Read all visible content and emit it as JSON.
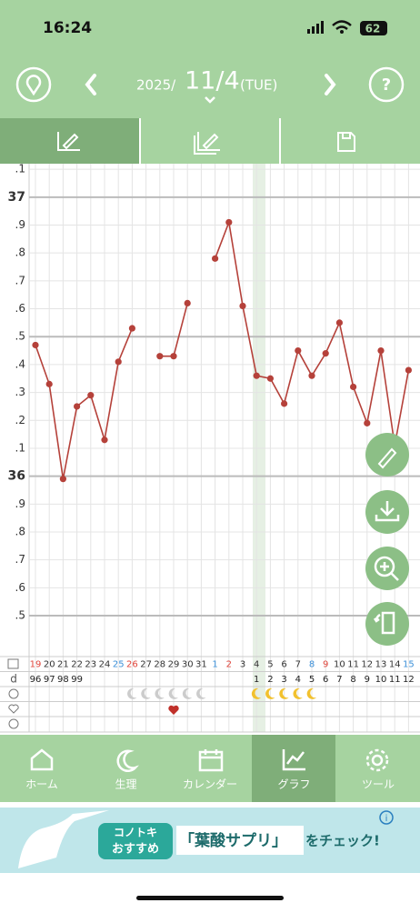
{
  "status_bar": {
    "time": "16:24",
    "battery": "62"
  },
  "header": {
    "year": "2025/",
    "date": "11/4",
    "weekday": "(TUE)"
  },
  "chart_data": {
    "type": "line",
    "categories": [
      "19",
      "20",
      "21",
      "22",
      "23",
      "24",
      "25",
      "26",
      "27",
      "28",
      "29",
      "30",
      "31",
      "1",
      "2",
      "3",
      "4",
      "5",
      "6",
      "7",
      "8",
      "9",
      "10",
      "11",
      "12",
      "13",
      "14",
      "15"
    ],
    "category_colors": [
      "#e0443a",
      "#333",
      "#333",
      "#333",
      "#333",
      "#333",
      "#3b8fd8",
      "#e0443a",
      "#333",
      "#333",
      "#333",
      "#333",
      "#333",
      "#3b8fd8",
      "#e0443a",
      "#333",
      "#333",
      "#333",
      "#333",
      "#333",
      "#3b8fd8",
      "#e0443a",
      "#333",
      "#333",
      "#333",
      "#333",
      "#333",
      "#3b8fd8"
    ],
    "series": [
      {
        "color": "#b5413a",
        "values": [
          36.47,
          36.33,
          35.99,
          36.25,
          36.29,
          36.13,
          36.41,
          36.53,
          null,
          36.43,
          36.43,
          36.62,
          null,
          36.78,
          36.91,
          36.61,
          36.36,
          36.35,
          36.26,
          36.45,
          36.36,
          36.44,
          36.55,
          36.32,
          36.19,
          36.45,
          36.11,
          36.38
        ]
      }
    ],
    "ylim": [
      35.36,
      37.12
    ],
    "yticks": [
      {
        "value": 37.1,
        "label": ".1"
      },
      37,
      {
        "value": 36.9,
        "label": ".9"
      },
      {
        "value": 36.8,
        "label": ".8"
      },
      {
        "value": 36.7,
        "label": ".7"
      },
      {
        "value": 36.6,
        "label": ".6"
      },
      {
        "value": 36.5,
        "label": ".5"
      },
      {
        "value": 36.4,
        "label": ".4"
      },
      {
        "value": 36.3,
        "label": ".3"
      },
      {
        "value": 36.2,
        "label": ".2"
      },
      {
        "value": 36.1,
        "label": ".1"
      },
      36,
      {
        "value": 35.9,
        "label": ".9"
      },
      {
        "value": 35.8,
        "label": ".8"
      },
      {
        "value": 35.7,
        "label": ".7"
      },
      {
        "value": 35.6,
        "label": ".6"
      },
      {
        "value": 35.5,
        "label": ".5"
      }
    ],
    "grid": true
  },
  "row_labels": {
    "cycle": "d"
  },
  "cycle_days": [
    96,
    97,
    98,
    99,
    null,
    null,
    null,
    null,
    null,
    null,
    null,
    null,
    null,
    null,
    null,
    null,
    1,
    2,
    3,
    4,
    5,
    6,
    7,
    8,
    9,
    10,
    11,
    12
  ],
  "nav": [
    "ホーム",
    "生理",
    "カレンダー",
    "グラフ",
    "ツール"
  ],
  "ad": {
    "badge_top": "コノトキ",
    "badge_bottom": "おすすめ",
    "highlight": "「葉酸サプリ」",
    "headline": "をチェック!"
  }
}
